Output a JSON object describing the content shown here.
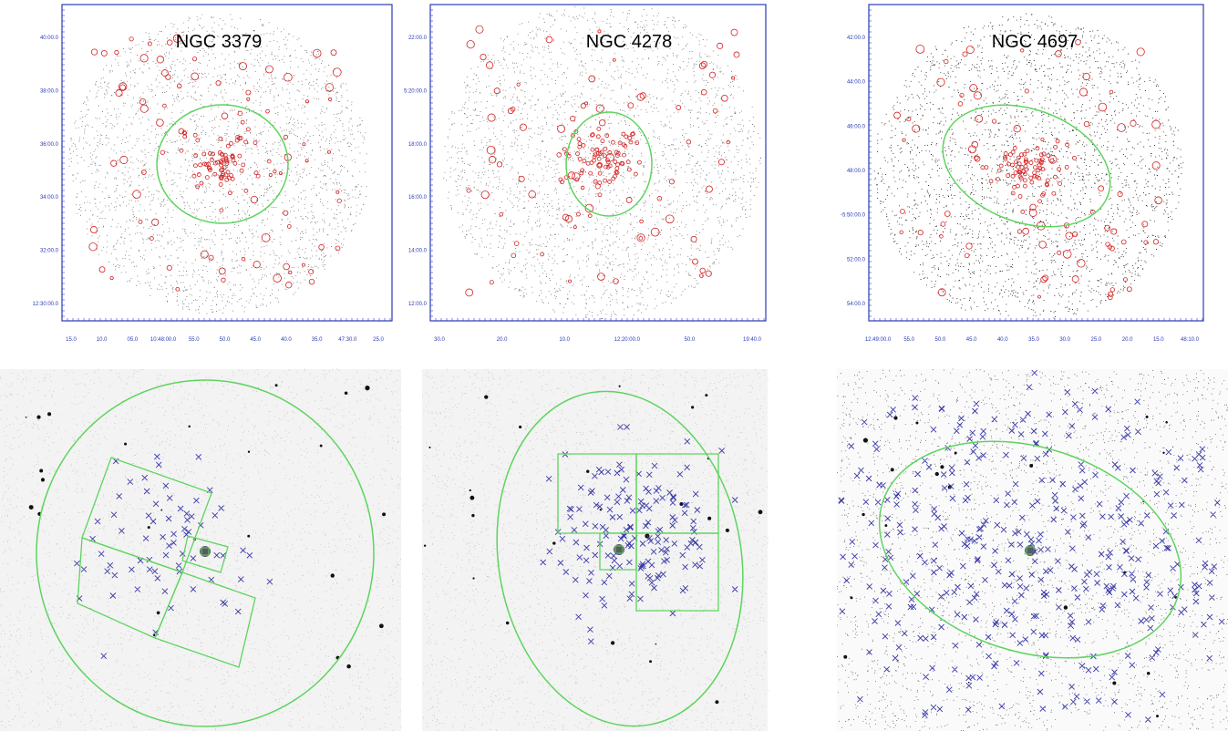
{
  "panels": [
    {
      "title": "NGC 3379",
      "y_ticks": [
        "40:00.0",
        "38:00.0",
        "36:00.0",
        "34:00.0",
        "32:00.0",
        "12:30:00.0"
      ],
      "x_ticks": [
        "15.0",
        "10.0",
        "05.0",
        "10:48:00.0",
        "55.0",
        "50.0",
        "45.0",
        "40.0",
        "35.0",
        "47:30.0",
        "25.0"
      ]
    },
    {
      "title": "NGC 4278",
      "y_ticks": [
        "22:00.0",
        "5:20:00.0",
        "18:00.0",
        "16:00.0",
        "14:00.0",
        "12:00.0"
      ],
      "x_ticks": [
        "30.0",
        "20.0",
        "10.0",
        "12:20:00.0",
        "50.0",
        "19:40.0"
      ]
    },
    {
      "title": "NGC 4697",
      "y_ticks": [
        "42:00.0",
        "44:00.0",
        "46:00.0",
        "48:00.0",
        "-5:50:00.0",
        "52:00.0",
        "54:00.0"
      ],
      "x_ticks": [
        "12:49:00.0",
        "55.0",
        "50.0",
        "45.0",
        "40.0",
        "35.0",
        "30.0",
        "25.0",
        "20.0",
        "15.0",
        "48:10.0"
      ]
    }
  ]
}
